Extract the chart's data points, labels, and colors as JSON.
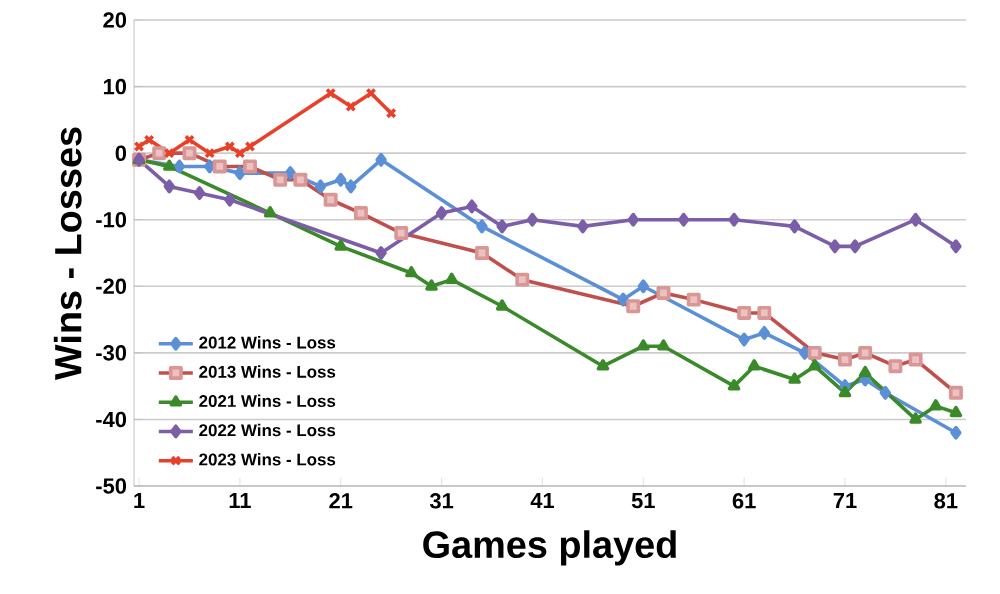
{
  "chart_data": {
    "type": "line",
    "xlabel": "Games played",
    "ylabel": "Wins - Losses",
    "xlim": [
      0.5,
      83
    ],
    "xticks": [
      1,
      11,
      21,
      31,
      41,
      51,
      61,
      71,
      81
    ],
    "ylim": [
      -50,
      20
    ],
    "yticks": [
      -50,
      -40,
      -30,
      -20,
      -10,
      0,
      10,
      20
    ],
    "grid": "y",
    "legend": "bottom left",
    "series": [
      {
        "name": "2012 Wins - Loss",
        "color": "#5b8fd6",
        "marker": "diamond",
        "x": [
          1,
          5,
          8,
          11,
          16,
          19,
          21,
          22,
          25,
          35,
          49,
          51,
          61,
          63,
          67,
          71,
          73,
          75,
          82
        ],
        "values": [
          -1,
          -2,
          -2,
          -3,
          -3,
          -5,
          -4,
          -5,
          -1,
          -11,
          -22,
          -20,
          -28,
          -27,
          -30,
          -35,
          -34,
          -36,
          -42
        ]
      },
      {
        "name": "2013 Wins - Loss",
        "color": "#c0504d",
        "marker": "square",
        "x": [
          1,
          3,
          6,
          9,
          12,
          15,
          17,
          20,
          23,
          27,
          35,
          39,
          50,
          53,
          56,
          61,
          63,
          68,
          71,
          73,
          76,
          78,
          82
        ],
        "values": [
          -1,
          0,
          0,
          -2,
          -2,
          -4,
          -4,
          -7,
          -9,
          -12,
          -15,
          -19,
          -23,
          -21,
          -22,
          -24,
          -24,
          -30,
          -31,
          -30,
          -32,
          -31,
          -36
        ]
      },
      {
        "name": "2021 Wins - Loss",
        "color": "#3a8a2a",
        "marker": "triangle",
        "x": [
          1,
          4,
          14,
          21,
          28,
          30,
          32,
          37,
          47,
          51,
          53,
          60,
          62,
          66,
          68,
          71,
          73,
          78,
          80,
          82
        ],
        "values": [
          -1,
          -2,
          -9,
          -14,
          -18,
          -20,
          -19,
          -23,
          -32,
          -29,
          -29,
          -35,
          -32,
          -34,
          -32,
          -36,
          -33,
          -40,
          -38,
          -39
        ]
      },
      {
        "name": "2022 Wins - Loss",
        "color": "#7b5ea7",
        "marker": "diamond",
        "x": [
          1,
          4,
          7,
          10,
          25,
          31,
          34,
          37,
          40,
          45,
          50,
          55,
          60,
          66,
          70,
          72,
          78,
          82
        ],
        "values": [
          -1,
          -5,
          -6,
          -7,
          -15,
          -9,
          -8,
          -11,
          -10,
          -11,
          -10,
          -10,
          -10,
          -11,
          -14,
          -14,
          -10,
          -14
        ]
      },
      {
        "name": "2023 Wins - Loss",
        "color": "#e8412a",
        "marker": "cross",
        "x": [
          1,
          2,
          4,
          6,
          8,
          10,
          11,
          12,
          20,
          22,
          24,
          26
        ],
        "values": [
          1,
          2,
          0,
          2,
          0,
          1,
          0,
          1,
          9,
          7,
          9,
          6
        ]
      }
    ]
  }
}
